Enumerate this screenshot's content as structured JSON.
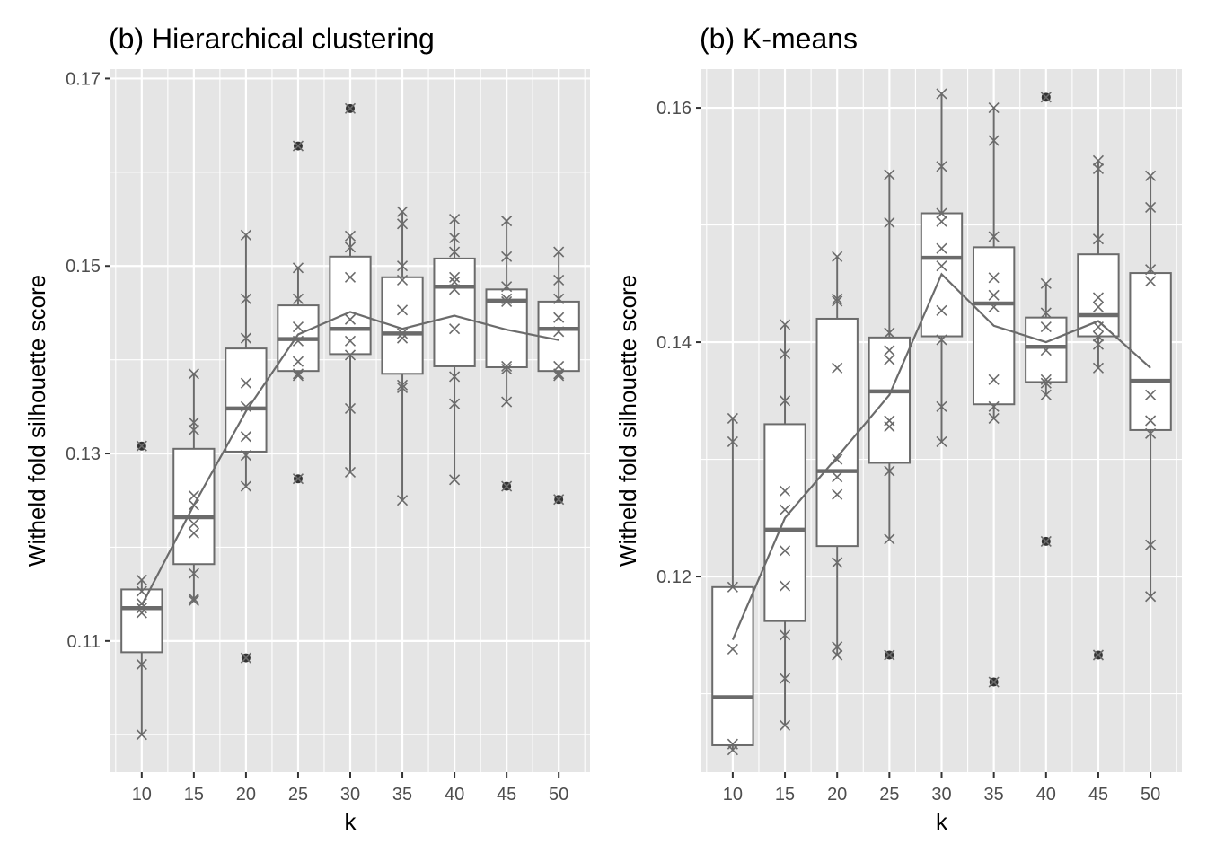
{
  "chart_data": [
    {
      "type": "boxplot",
      "title": "(b) Hierarchical clustering",
      "xlabel": "k",
      "ylabel": "Witheld fold silhouette score",
      "categories": [
        "10",
        "15",
        "20",
        "25",
        "30",
        "35",
        "40",
        "45",
        "50"
      ],
      "ylim": [
        0.096,
        0.171
      ],
      "y_ticks": [
        "0.11",
        "0.13",
        "0.15",
        "0.17"
      ],
      "grid": true,
      "boxes": [
        {
          "k": "10",
          "q1": 0.1088,
          "median": 0.1135,
          "q3": 0.1155,
          "whisker_low": 0.1,
          "whisker_high": 0.1165,
          "outliers": [
            0.1308
          ]
        },
        {
          "k": "15",
          "q1": 0.1182,
          "median": 0.1232,
          "q3": 0.1305,
          "whisker_low": 0.1143,
          "whisker_high": 0.1385,
          "outliers": []
        },
        {
          "k": "20",
          "q1": 0.1302,
          "median": 0.1348,
          "q3": 0.1412,
          "whisker_low": 0.1265,
          "whisker_high": 0.1533,
          "outliers": [
            0.1082
          ]
        },
        {
          "k": "25",
          "q1": 0.1388,
          "median": 0.1422,
          "q3": 0.1458,
          "whisker_low": 0.1383,
          "whisker_high": 0.1498,
          "outliers": [
            0.1628,
            0.1273
          ]
        },
        {
          "k": "30",
          "q1": 0.1406,
          "median": 0.1433,
          "q3": 0.151,
          "whisker_low": 0.128,
          "whisker_high": 0.1532,
          "outliers": [
            0.1668
          ]
        },
        {
          "k": "35",
          "q1": 0.1385,
          "median": 0.1428,
          "q3": 0.1488,
          "whisker_low": 0.125,
          "whisker_high": 0.1558,
          "outliers": []
        },
        {
          "k": "40",
          "q1": 0.1393,
          "median": 0.1478,
          "q3": 0.1508,
          "whisker_low": 0.1272,
          "whisker_high": 0.155,
          "outliers": []
        },
        {
          "k": "45",
          "q1": 0.1392,
          "median": 0.1463,
          "q3": 0.1475,
          "whisker_low": 0.1355,
          "whisker_high": 0.1548,
          "outliers": [
            0.1265
          ]
        },
        {
          "k": "50",
          "q1": 0.1388,
          "median": 0.1433,
          "q3": 0.1462,
          "whisker_low": 0.1383,
          "whisker_high": 0.1515,
          "outliers": [
            0.1251
          ]
        }
      ],
      "points": [
        {
          "k": "10",
          "values": [
            0.1308,
            0.1165,
            0.1153,
            0.114,
            0.1135,
            0.113,
            0.1075,
            0.1
          ]
        },
        {
          "k": "15",
          "values": [
            0.1385,
            0.1333,
            0.1325,
            0.1255,
            0.1245,
            0.1225,
            0.1215,
            0.1172,
            0.1145,
            0.1143
          ]
        },
        {
          "k": "20",
          "values": [
            0.1533,
            0.1465,
            0.1423,
            0.1375,
            0.135,
            0.1318,
            0.1298,
            0.1265,
            0.1082
          ]
        },
        {
          "k": "25",
          "values": [
            0.1628,
            0.1498,
            0.1465,
            0.1435,
            0.142,
            0.1398,
            0.1385,
            0.1383,
            0.1273
          ]
        },
        {
          "k": "30",
          "values": [
            0.1668,
            0.1532,
            0.152,
            0.1488,
            0.1443,
            0.142,
            0.1405,
            0.1348,
            0.128
          ]
        },
        {
          "k": "35",
          "values": [
            0.1558,
            0.1545,
            0.15,
            0.1485,
            0.1453,
            0.1428,
            0.1423,
            0.1373,
            0.137,
            0.125
          ]
        },
        {
          "k": "40",
          "values": [
            0.155,
            0.153,
            0.1515,
            0.1488,
            0.1483,
            0.1475,
            0.1433,
            0.1382,
            0.1353,
            0.1272
          ]
        },
        {
          "k": "45",
          "values": [
            0.1548,
            0.151,
            0.1478,
            0.1465,
            0.1462,
            0.1393,
            0.139,
            0.1355,
            0.1265
          ]
        },
        {
          "k": "50",
          "values": [
            0.1515,
            0.1485,
            0.1465,
            0.1445,
            0.143,
            0.1393,
            0.1385,
            0.1383,
            0.1251
          ]
        }
      ],
      "mean_line": [
        0.1138,
        0.1245,
        0.1345,
        0.1427,
        0.1451,
        0.1433,
        0.1447,
        0.1432,
        0.1421
      ]
    },
    {
      "type": "boxplot",
      "title": "(b) K-means",
      "xlabel": "k",
      "ylabel": "Witheld fold silhouette score",
      "categories": [
        "10",
        "15",
        "20",
        "25",
        "30",
        "35",
        "40",
        "45",
        "50"
      ],
      "ylim": [
        0.1033,
        0.1633
      ],
      "y_ticks": [
        "0.12",
        "0.14",
        "0.16"
      ],
      "grid": true,
      "boxes": [
        {
          "k": "10",
          "q1": 0.1056,
          "median": 0.1097,
          "q3": 0.1191,
          "whisker_low": 0.1052,
          "whisker_high": 0.1335,
          "outliers": []
        },
        {
          "k": "15",
          "q1": 0.1162,
          "median": 0.124,
          "q3": 0.133,
          "whisker_low": 0.1073,
          "whisker_high": 0.1415,
          "outliers": []
        },
        {
          "k": "20",
          "q1": 0.1226,
          "median": 0.129,
          "q3": 0.142,
          "whisker_low": 0.1133,
          "whisker_high": 0.1473,
          "outliers": []
        },
        {
          "k": "25",
          "q1": 0.1297,
          "median": 0.1358,
          "q3": 0.1404,
          "whisker_low": 0.1232,
          "whisker_high": 0.1543,
          "outliers": [
            0.1133
          ]
        },
        {
          "k": "30",
          "q1": 0.1405,
          "median": 0.1472,
          "q3": 0.151,
          "whisker_low": 0.1315,
          "whisker_high": 0.1612,
          "outliers": []
        },
        {
          "k": "35",
          "q1": 0.1347,
          "median": 0.1433,
          "q3": 0.1481,
          "whisker_low": 0.1335,
          "whisker_high": 0.16,
          "outliers": [
            0.111
          ]
        },
        {
          "k": "40",
          "q1": 0.1366,
          "median": 0.1396,
          "q3": 0.1421,
          "whisker_low": 0.1355,
          "whisker_high": 0.145,
          "outliers": [
            0.1609,
            0.123
          ]
        },
        {
          "k": "45",
          "q1": 0.1405,
          "median": 0.1423,
          "q3": 0.1475,
          "whisker_low": 0.1378,
          "whisker_high": 0.1555,
          "outliers": [
            0.1133
          ]
        },
        {
          "k": "50",
          "q1": 0.1325,
          "median": 0.1367,
          "q3": 0.1459,
          "whisker_low": 0.1183,
          "whisker_high": 0.1542,
          "outliers": []
        }
      ],
      "points": [
        {
          "k": "10",
          "values": [
            0.1335,
            0.1315,
            0.1191,
            0.1138,
            0.1057,
            0.1052
          ]
        },
        {
          "k": "15",
          "values": [
            0.1415,
            0.139,
            0.135,
            0.1273,
            0.1257,
            0.1222,
            0.1192,
            0.115,
            0.1113,
            0.1073
          ]
        },
        {
          "k": "20",
          "values": [
            0.1473,
            0.1437,
            0.1435,
            0.1378,
            0.13,
            0.1285,
            0.127,
            0.1212,
            0.114,
            0.1133
          ]
        },
        {
          "k": "25",
          "values": [
            0.1543,
            0.1502,
            0.1408,
            0.1393,
            0.1385,
            0.1333,
            0.1328,
            0.129,
            0.1232,
            0.1133
          ]
        },
        {
          "k": "30",
          "values": [
            0.1612,
            0.155,
            0.151,
            0.1503,
            0.148,
            0.1465,
            0.1427,
            0.1402,
            0.1345,
            0.1315
          ]
        },
        {
          "k": "35",
          "values": [
            0.16,
            0.1572,
            0.149,
            0.1455,
            0.144,
            0.143,
            0.1368,
            0.1345,
            0.1335,
            0.111
          ]
        },
        {
          "k": "40",
          "values": [
            0.1609,
            0.145,
            0.1425,
            0.1413,
            0.1393,
            0.1368,
            0.1365,
            0.1355,
            0.123
          ]
        },
        {
          "k": "45",
          "values": [
            0.1555,
            0.1548,
            0.1488,
            0.1438,
            0.143,
            0.1413,
            0.1405,
            0.1398,
            0.1378,
            0.1133
          ]
        },
        {
          "k": "50",
          "values": [
            0.1542,
            0.1515,
            0.1462,
            0.1452,
            0.1355,
            0.1333,
            0.1322,
            0.1227,
            0.1183
          ]
        }
      ],
      "mean_line": [
        0.1146,
        0.125,
        0.1302,
        0.1355,
        0.1458,
        0.1414,
        0.14,
        0.1418,
        0.1378
      ]
    }
  ],
  "style": {
    "panel_background": "#e5e5e5",
    "grid_color": "#ffffff",
    "box_stroke": "#6b6b6b",
    "box_fill": "#ffffff",
    "point_color": "#6b6b6b",
    "outlier_color": "#333333",
    "tick_label_color": "#4d4d4d"
  }
}
